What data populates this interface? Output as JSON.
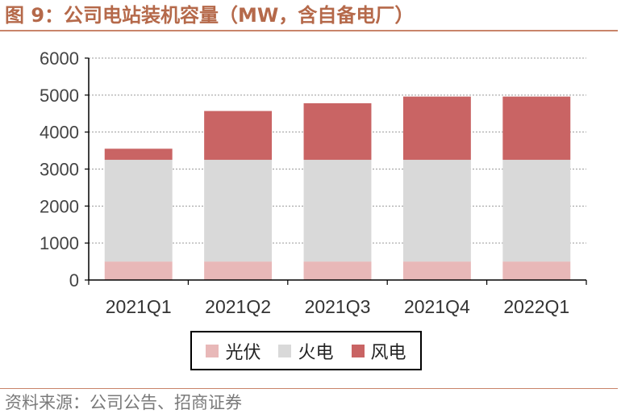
{
  "header": {
    "title": "图 9：公司电站装机容量（MW，含自备电厂）"
  },
  "footer": {
    "source": "资料来源：公司公告、招商证券"
  },
  "chart_data": {
    "type": "bar",
    "stacked": true,
    "title": "图 9：公司电站装机容量（MW，含自备电厂）",
    "xlabel": "",
    "ylabel": "",
    "categories": [
      "2021Q1",
      "2021Q2",
      "2021Q3",
      "2021Q4",
      "2022Q1"
    ],
    "series": [
      {
        "name": "光伏",
        "color": "#e8b8b8",
        "values": [
          500,
          500,
          500,
          500,
          500
        ]
      },
      {
        "name": "火电",
        "color": "#d9d9d9",
        "values": [
          2750,
          2750,
          2750,
          2750,
          2750
        ]
      },
      {
        "name": "风电",
        "color": "#c96464",
        "values": [
          300,
          1320,
          1530,
          1710,
          1710
        ]
      }
    ],
    "ylim": [
      0,
      6000
    ],
    "yticks": [
      "0",
      "1000",
      "2000",
      "3000",
      "4000",
      "5000",
      "6000"
    ],
    "grid": true,
    "legend": "bottom"
  }
}
